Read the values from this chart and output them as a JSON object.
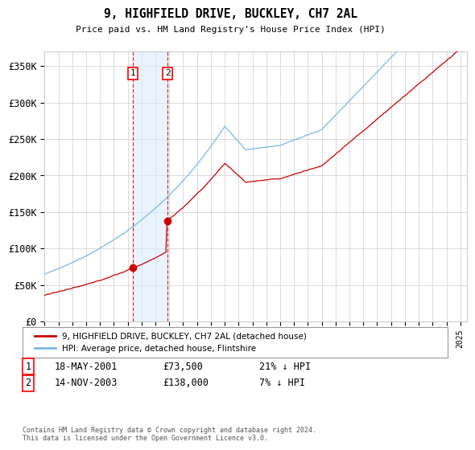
{
  "title": "9, HIGHFIELD DRIVE, BUCKLEY, CH7 2AL",
  "subtitle": "Price paid vs. HM Land Registry's House Price Index (HPI)",
  "ylabel_ticks": [
    "£0",
    "£50K",
    "£100K",
    "£150K",
    "£200K",
    "£250K",
    "£300K",
    "£350K"
  ],
  "ytick_values": [
    0,
    50000,
    100000,
    150000,
    200000,
    250000,
    300000,
    350000
  ],
  "ylim": [
    0,
    370000
  ],
  "xlim_start": 1995.0,
  "xlim_end": 2025.5,
  "hpi_color": "#7ab8e8",
  "price_color": "#cc0000",
  "sale1_date": 2001.38,
  "sale1_price": 73500,
  "sale2_date": 2003.87,
  "sale2_price": 138000,
  "legend_label1": "9, HIGHFIELD DRIVE, BUCKLEY, CH7 2AL (detached house)",
  "legend_label2": "HPI: Average price, detached house, Flintshire",
  "table_row1_num": "1",
  "table_row1_date": "18-MAY-2001",
  "table_row1_price": "£73,500",
  "table_row1_hpi": "21% ↓ HPI",
  "table_row2_num": "2",
  "table_row2_date": "14-NOV-2003",
  "table_row2_price": "£138,000",
  "table_row2_hpi": "7% ↓ HPI",
  "footnote": "Contains HM Land Registry data © Crown copyright and database right 2024.\nThis data is licensed under the Open Government Licence v3.0.",
  "bg_color": "#ffffff",
  "grid_color": "#cccccc",
  "shade_color": "#ddeeff"
}
